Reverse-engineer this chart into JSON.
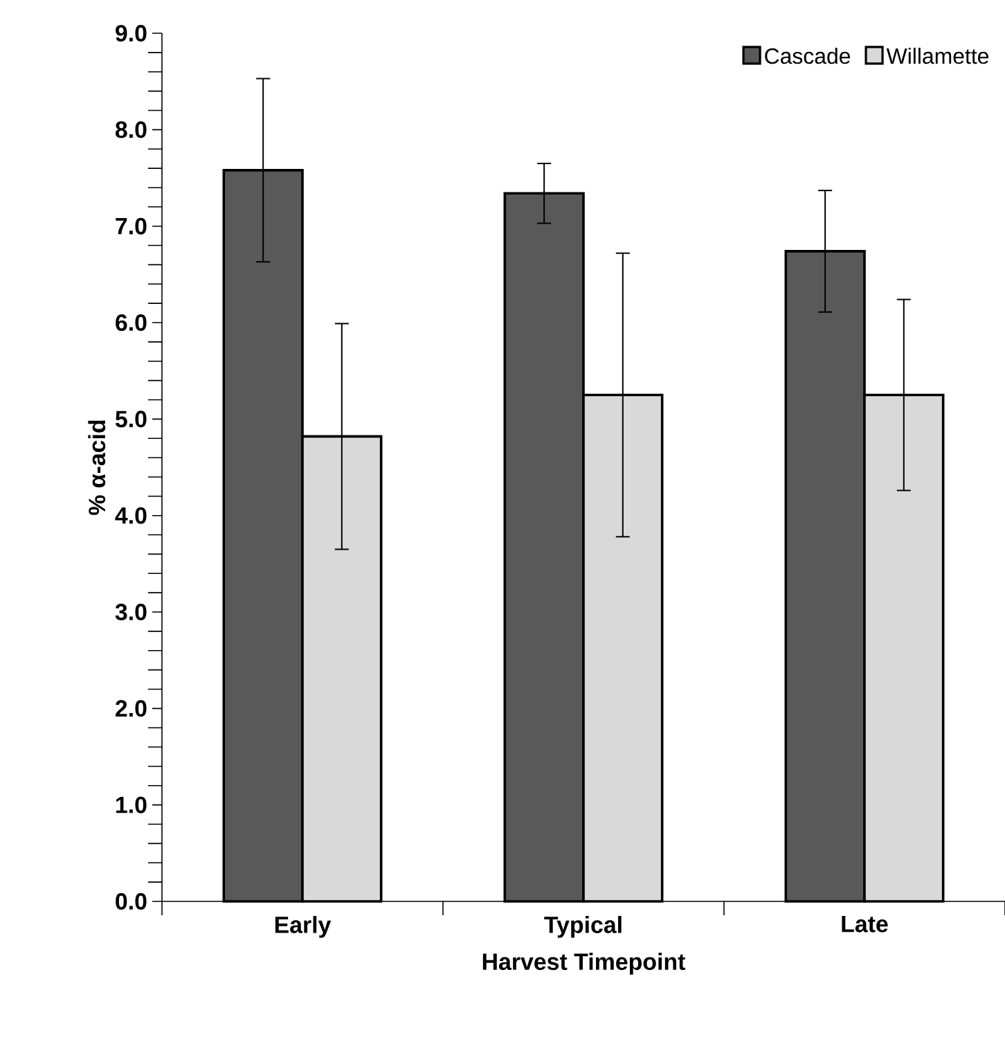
{
  "chart_data": {
    "type": "bar",
    "xlabel": "Harvest Timepoint",
    "ylabel": "% α-acid",
    "categories": [
      "Early",
      "Typical",
      "Late"
    ],
    "series": [
      {
        "name": "Cascade",
        "color": "#595959",
        "values": [
          7.58,
          7.34,
          6.74
        ],
        "errors": [
          0.95,
          0.31,
          0.63
        ]
      },
      {
        "name": "Willamette",
        "color": "#d9d9d9",
        "values": [
          4.82,
          5.25,
          5.25
        ],
        "errors": [
          1.17,
          1.47,
          0.99
        ]
      }
    ],
    "ylim": [
      0,
      9
    ],
    "yticks": [
      {
        "value": 0,
        "label": "0.0"
      },
      {
        "value": 1,
        "label": "1.0"
      },
      {
        "value": 2,
        "label": "2.0"
      },
      {
        "value": 3,
        "label": "3.0"
      },
      {
        "value": 4,
        "label": "4.0"
      },
      {
        "value": 5,
        "label": "5.0"
      },
      {
        "value": 6,
        "label": "6.0"
      },
      {
        "value": 7,
        "label": "7.0"
      },
      {
        "value": 8,
        "label": "8.0"
      },
      {
        "value": 9,
        "label": "9.0"
      }
    ],
    "grid": false,
    "legend": "top right"
  }
}
